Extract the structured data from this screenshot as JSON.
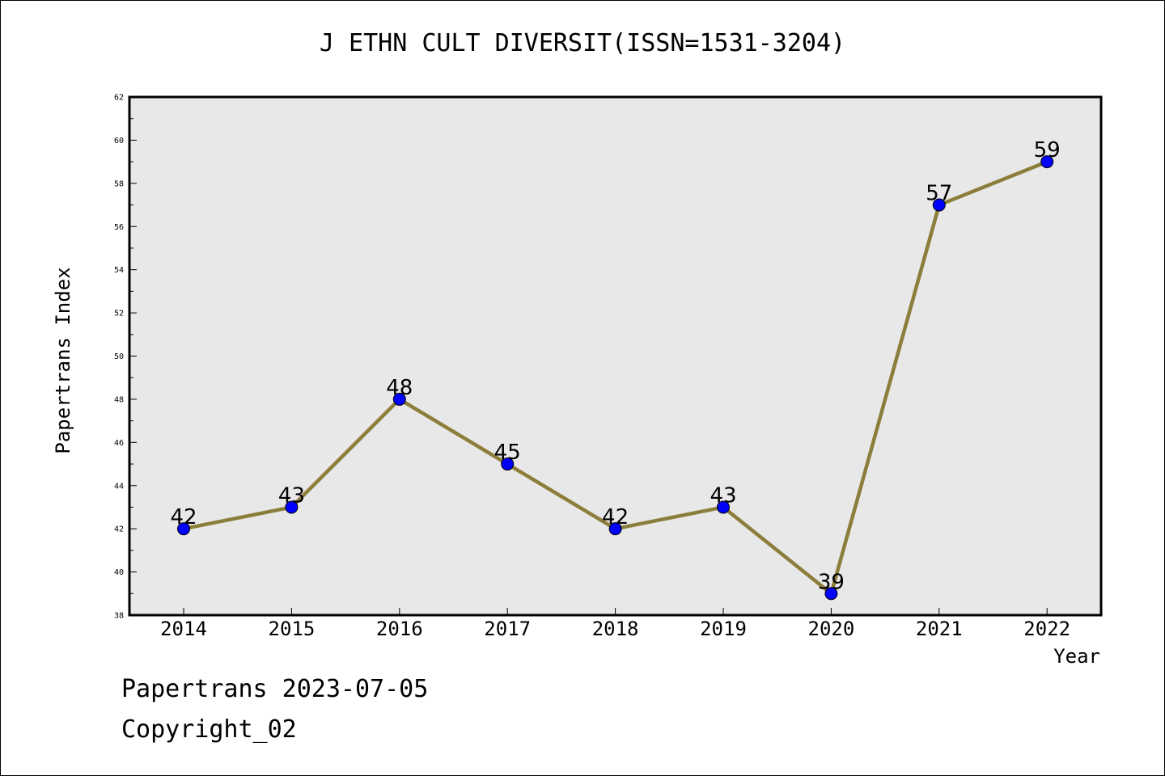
{
  "chart_data": {
    "type": "line",
    "title": "J ETHN CULT DIVERSIT(ISSN=1531-3204)",
    "xlabel": "Year",
    "ylabel": "Papertrans Index",
    "categories": [
      "2014",
      "2015",
      "2016",
      "2017",
      "2018",
      "2019",
      "2020",
      "2021",
      "2022"
    ],
    "series": [
      {
        "values": [
          42,
          43,
          48,
          45,
          42,
          43,
          39,
          57,
          59
        ],
        "line_color": "#8b7d3a",
        "marker_color": "#0000ff"
      }
    ],
    "ylim": [
      38,
      62
    ],
    "yticks": [
      38,
      40,
      42,
      44,
      46,
      48,
      50,
      52,
      54,
      56,
      58,
      60,
      62
    ],
    "data_labels": true,
    "grid": false,
    "legend": "none",
    "plot_background": "#e8e8e8"
  },
  "footer": {
    "date_text": "Papertrans 2023-07-05",
    "copyright_text": "Copyright_02"
  }
}
